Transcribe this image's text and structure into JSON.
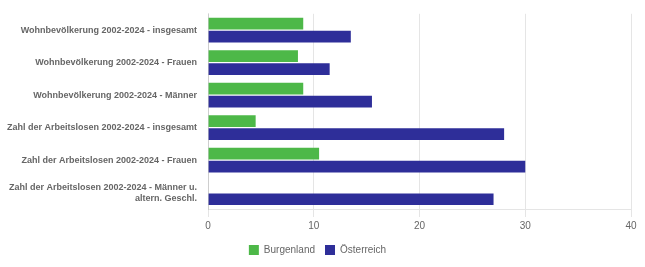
{
  "chart_data": {
    "type": "bar",
    "orientation": "horizontal",
    "categories": [
      "Wohnbevölkerung 2002-2024 - insgesamt",
      "Wohnbevölkerung 2002-2024 - Frauen",
      "Wohnbevölkerung 2002-2024 - Männer",
      "Zahl der Arbeitslosen 2002-2024 - insgesamt",
      "Zahl der Arbeitslosen 2002-2024 - Frauen",
      "Zahl der Arbeitslosen 2002-2024 - Männer u.\naltern. Geschl."
    ],
    "series": [
      {
        "name": "Burgenland",
        "color": "#4db848",
        "values": [
          9.0,
          8.5,
          9.0,
          4.5,
          10.5,
          0.0
        ]
      },
      {
        "name": "Österreich",
        "color": "#2e2e99",
        "values": [
          13.5,
          11.5,
          15.5,
          28.0,
          30.0,
          27.0
        ]
      }
    ],
    "xlim": [
      0,
      40
    ],
    "xticks": [
      0,
      10,
      20,
      30,
      40
    ],
    "grid": true,
    "legend": "bottom"
  }
}
